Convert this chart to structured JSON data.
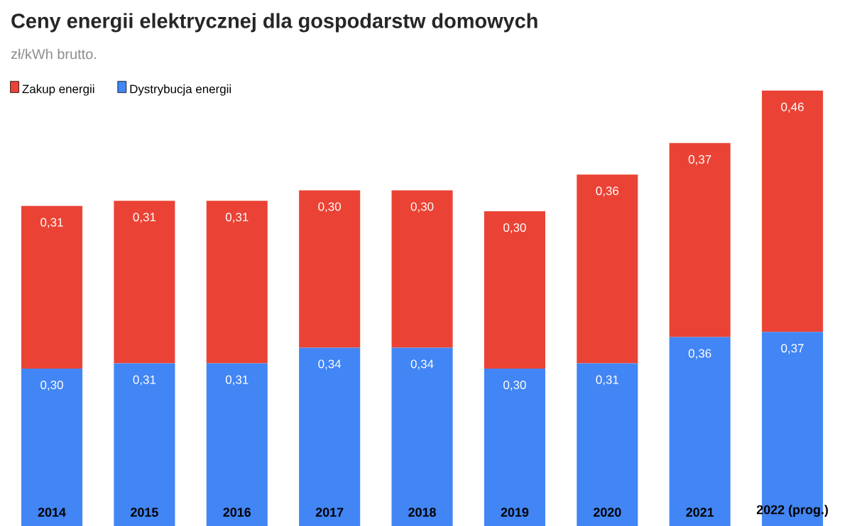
{
  "chart_data": {
    "type": "bar",
    "title": "Ceny energii elektrycznej dla gospodarstw domowych",
    "subtitle": "zł/kWh brutto.",
    "stacked": true,
    "legend": "top left",
    "categories": [
      "2014",
      "2015",
      "2016",
      "2017",
      "2018",
      "2019",
      "2020",
      "2021",
      "2022 (prog.)"
    ],
    "series": [
      {
        "name": "Dystrybucja energii",
        "color": "#4285f4",
        "values": [
          0.3,
          0.31,
          0.31,
          0.34,
          0.34,
          0.3,
          0.31,
          0.36,
          0.37
        ],
        "value_labels": [
          "0,30",
          "0,31",
          "0,31",
          "0,34",
          "0,34",
          "0,30",
          "0,31",
          "0,36",
          "0,37"
        ]
      },
      {
        "name": "Zakup energii",
        "color": "#ea4335",
        "values": [
          0.31,
          0.31,
          0.31,
          0.3,
          0.3,
          0.3,
          0.36,
          0.37,
          0.46
        ],
        "value_labels": [
          "0,31",
          "0,31",
          "0,31",
          "0,30",
          "0,30",
          "0,30",
          "0,36",
          "0,37",
          "0,46"
        ]
      }
    ]
  }
}
